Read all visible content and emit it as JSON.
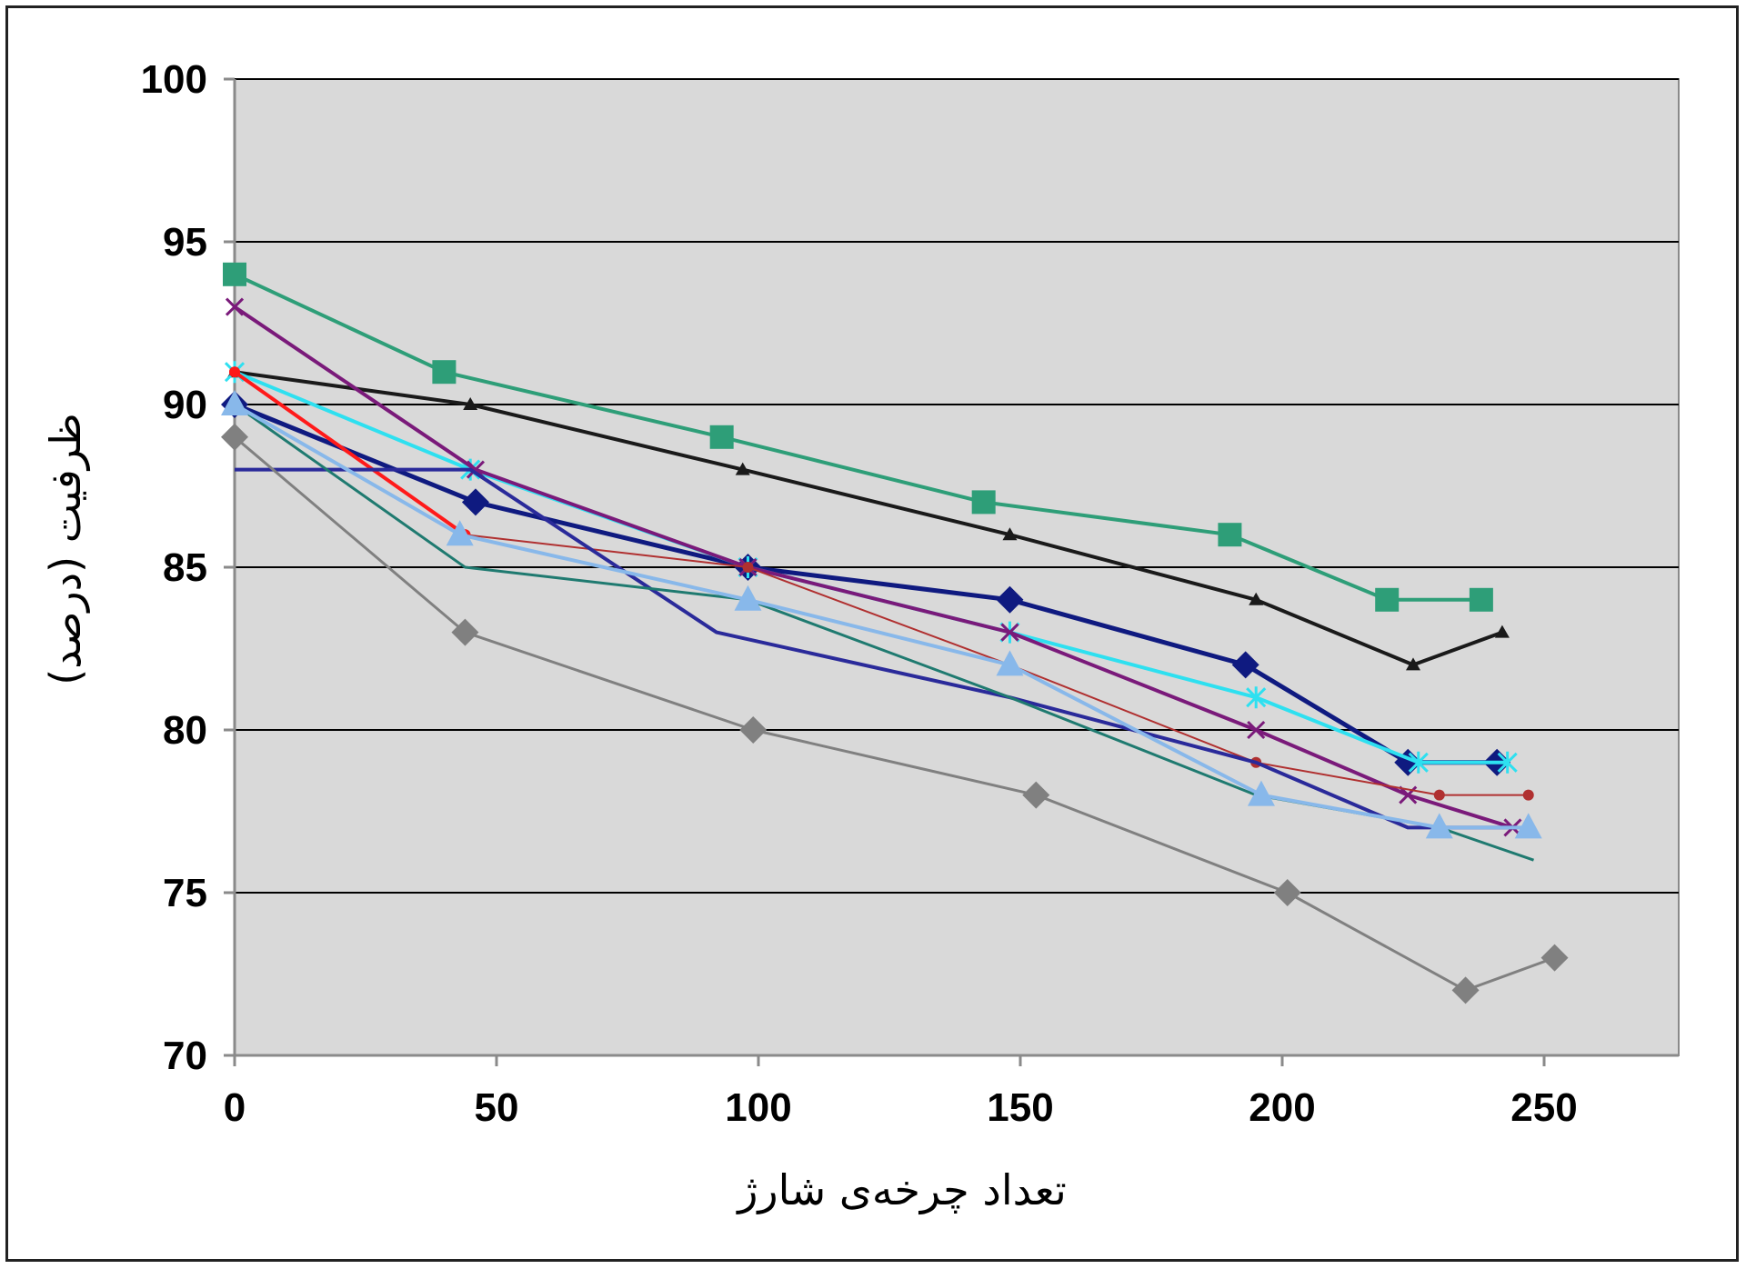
{
  "chart_data": {
    "type": "line",
    "title": "",
    "xlabel": "تعداد چرخه‌ی شارژ",
    "ylabel": "ظرفیت (درصد)",
    "xlim": [
      0,
      275
    ],
    "ylim": [
      70,
      100
    ],
    "x_ticks": [
      0,
      50,
      100,
      150,
      200,
      250
    ],
    "y_ticks": [
      70,
      75,
      80,
      85,
      90,
      95,
      100
    ],
    "grid": "horizontal",
    "legend": "none",
    "plot_background": "#d9d9d9",
    "series": [
      {
        "color": "#2e9e78",
        "marker": "square",
        "width": 4,
        "x": [
          0,
          40,
          93,
          143,
          190,
          220,
          238
        ],
        "y": [
          94,
          91,
          89,
          87,
          86,
          84,
          84
        ]
      },
      {
        "color": "#1a1a1a",
        "marker": "triangle",
        "width": 4,
        "x": [
          0,
          45,
          97,
          148,
          195,
          225,
          242
        ],
        "y": [
          91,
          90,
          88,
          86,
          84,
          82,
          83
        ]
      },
      {
        "color": "#0f1a80",
        "marker": "diamond",
        "width": 5,
        "x": [
          0,
          46,
          98,
          148,
          193,
          224,
          241
        ],
        "y": [
          90,
          87,
          85,
          84,
          82,
          79,
          79
        ]
      },
      {
        "color": "#2ee0f0",
        "marker": "star",
        "width": 4,
        "x": [
          0,
          45,
          98,
          148,
          195,
          226,
          243
        ],
        "y": [
          91,
          88,
          85,
          83,
          81,
          79,
          79
        ]
      },
      {
        "color": "#7a1a7a",
        "marker": "x",
        "width": 4,
        "x": [
          0,
          46,
          98,
          148,
          195,
          224,
          244
        ],
        "y": [
          93,
          88,
          85,
          83,
          80,
          78,
          77
        ]
      },
      {
        "color": "#b03030",
        "marker": "circle",
        "width": 2,
        "x": [
          0,
          44,
          98,
          148,
          195,
          230,
          247
        ],
        "y": [
          91,
          86,
          85,
          82,
          79,
          78,
          78
        ]
      },
      {
        "color": "#ff1a1a",
        "marker": "circle",
        "width": 4,
        "x": [
          0,
          44
        ],
        "y": [
          91,
          86
        ]
      },
      {
        "color": "#2a2a9a",
        "marker": "none",
        "width": 4,
        "x": [
          0,
          45,
          92,
          148,
          195,
          224,
          245
        ],
        "y": [
          88,
          88,
          83,
          81,
          79,
          77,
          77
        ]
      },
      {
        "color": "#1f7a70",
        "marker": "none",
        "width": 3,
        "x": [
          0,
          44,
          98,
          148,
          195,
          230,
          248
        ],
        "y": [
          90,
          85,
          84,
          81,
          78,
          77,
          76
        ]
      },
      {
        "color": "#88b8ea",
        "marker": "triangle-up",
        "width": 4,
        "x": [
          0,
          43,
          98,
          148,
          196,
          230,
          247
        ],
        "y": [
          90,
          86,
          84,
          82,
          78,
          77,
          77
        ]
      },
      {
        "color": "#808080",
        "marker": "diamond",
        "width": 3,
        "x": [
          0,
          44,
          99,
          153,
          201,
          235,
          252
        ],
        "y": [
          89,
          83,
          80,
          78,
          75,
          72,
          73
        ]
      }
    ]
  }
}
